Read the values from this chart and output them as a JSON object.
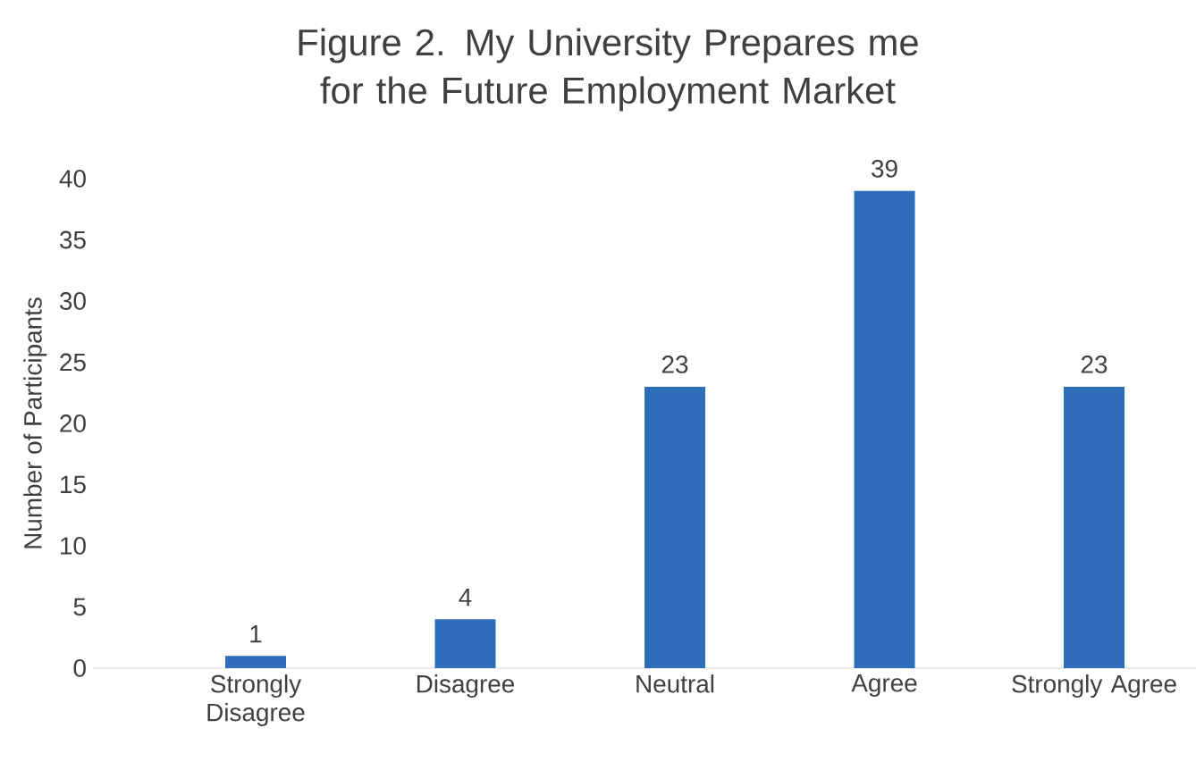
{
  "chart_data": {
    "type": "bar",
    "title": "Figure 2. My University Prepares me for the Future Employment Market",
    "ylabel": "Number of Participants",
    "categories": [
      "Strongly Disagree",
      "Disagree",
      "Neutral",
      "Agree",
      "Strongly Agree"
    ],
    "values": [
      1,
      4,
      23,
      39,
      23
    ],
    "color": "#2e6db9",
    "ylim": [
      0,
      40
    ],
    "yticks": [
      0,
      5,
      10,
      15,
      20,
      25,
      30,
      35,
      40
    ],
    "data_labels": true
  }
}
